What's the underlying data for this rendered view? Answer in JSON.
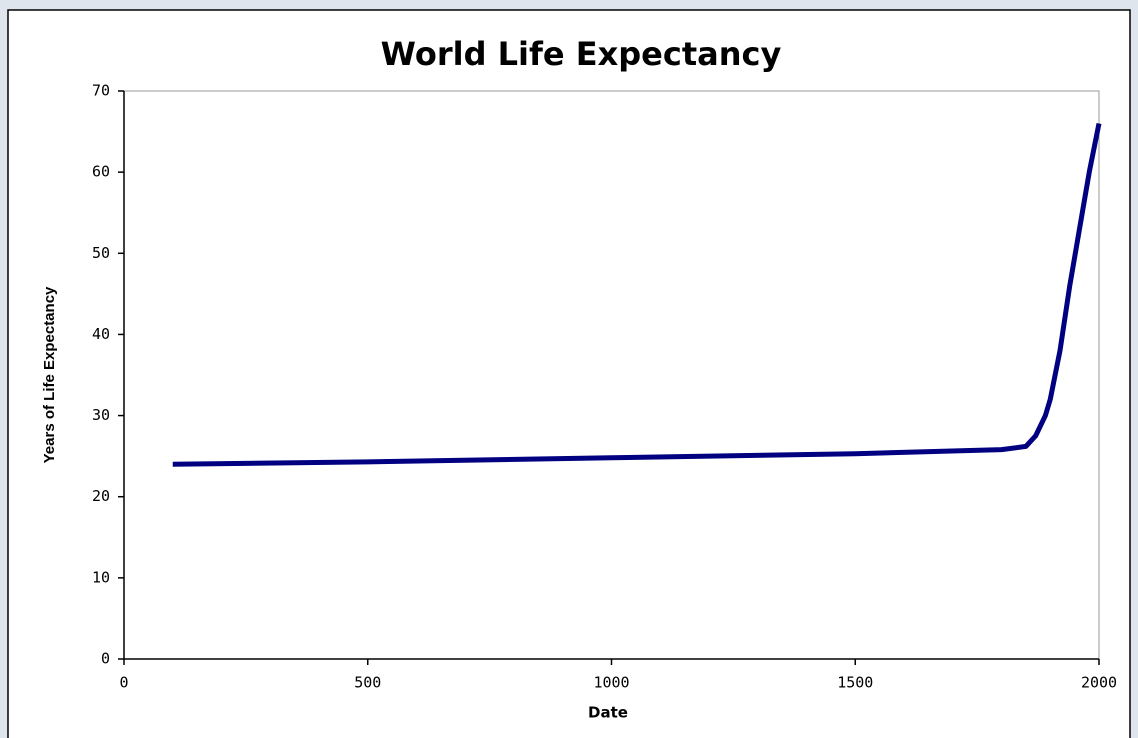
{
  "chart_data": {
    "type": "line",
    "title": "World Life Expectancy",
    "x_label": "Date",
    "y_label": "Years of Life Expectancy",
    "x": [
      100,
      500,
      1000,
      1500,
      1800,
      1850,
      1870,
      1890,
      1900,
      1920,
      1940,
      1960,
      1980,
      2000
    ],
    "series": [
      {
        "name": "World Life Expectancy",
        "color": "#000080",
        "values": [
          24,
          24.3,
          24.8,
          25.3,
          25.8,
          26.2,
          27.5,
          30,
          32,
          38,
          46,
          53,
          60,
          66
        ]
      }
    ],
    "xlim": [
      0,
      2000
    ],
    "xticks": [
      0,
      500,
      1000,
      1500,
      2000
    ],
    "ylim": [
      0,
      70
    ],
    "yticks": [
      0,
      10,
      20,
      30,
      40,
      50,
      60,
      70
    ],
    "grid": false
  }
}
